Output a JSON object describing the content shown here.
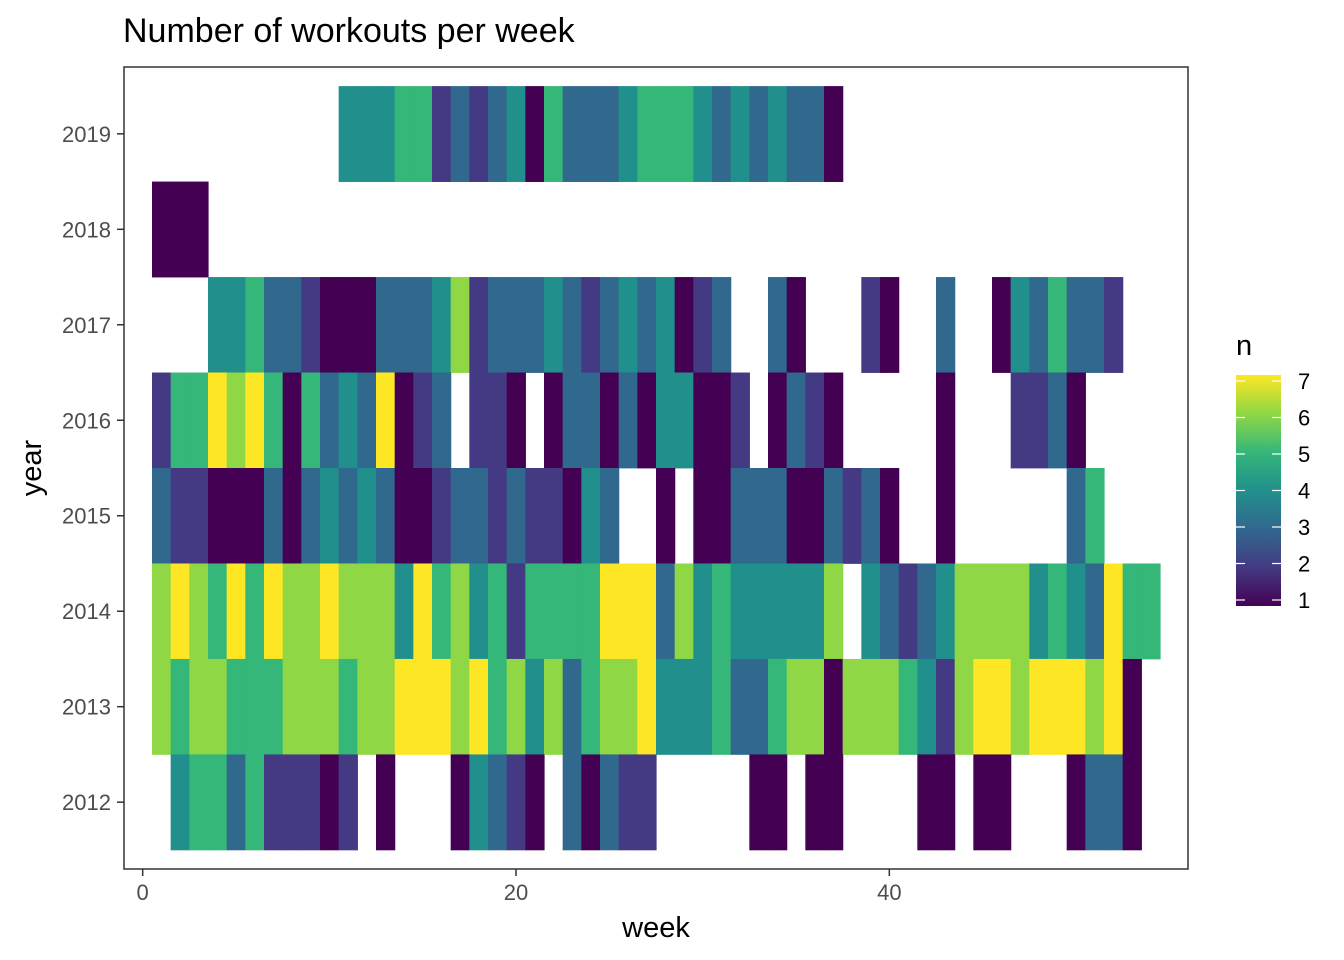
{
  "chart_data": {
    "type": "heatmap",
    "title": "Number of workouts per week",
    "xlabel": "week",
    "ylabel": "year",
    "xlim": [
      -1,
      56
    ],
    "ylim": [
      2011.3,
      2019.7
    ],
    "x_ticks": [
      0,
      20,
      40
    ],
    "y_ticks": [
      2012,
      2013,
      2014,
      2015,
      2016,
      2017,
      2018,
      2019
    ],
    "legend": {
      "title": "n",
      "min": 1,
      "max": 7,
      "ticks": [
        1,
        2,
        3,
        4,
        5,
        6,
        7
      ],
      "placement": "right",
      "palette": "viridis"
    },
    "colorscale": [
      "#440154",
      "#443A83",
      "#31688E",
      "#21908C",
      "#35B779",
      "#8FD744",
      "#FDE725"
    ],
    "grid": false,
    "rows": [
      {
        "year": 2019,
        "cells": [
          [
            11,
            4
          ],
          [
            12,
            4
          ],
          [
            13,
            4
          ],
          [
            14,
            5
          ],
          [
            15,
            5
          ],
          [
            16,
            2
          ],
          [
            17,
            3
          ],
          [
            18,
            2
          ],
          [
            19,
            3
          ],
          [
            20,
            4
          ],
          [
            21,
            1
          ],
          [
            22,
            5
          ],
          [
            23,
            3
          ],
          [
            24,
            3
          ],
          [
            25,
            3
          ],
          [
            26,
            4
          ],
          [
            27,
            5
          ],
          [
            28,
            5
          ],
          [
            29,
            5
          ],
          [
            30,
            4
          ],
          [
            31,
            3
          ],
          [
            32,
            4
          ],
          [
            33,
            3
          ],
          [
            34,
            4
          ],
          [
            35,
            3
          ],
          [
            36,
            3
          ],
          [
            37,
            1
          ]
        ]
      },
      {
        "year": 2018,
        "cells": [
          [
            1,
            1
          ],
          [
            2,
            1
          ],
          [
            3,
            1
          ]
        ]
      },
      {
        "year": 2017,
        "cells": [
          [
            4,
            4
          ],
          [
            5,
            4
          ],
          [
            6,
            5
          ],
          [
            7,
            3
          ],
          [
            8,
            3
          ],
          [
            9,
            2
          ],
          [
            10,
            1
          ],
          [
            11,
            1
          ],
          [
            12,
            1
          ],
          [
            13,
            3
          ],
          [
            14,
            3
          ],
          [
            15,
            3
          ],
          [
            16,
            4
          ],
          [
            17,
            6
          ],
          [
            18,
            2
          ],
          [
            19,
            3
          ],
          [
            20,
            3
          ],
          [
            21,
            3
          ],
          [
            22,
            4
          ],
          [
            23,
            3
          ],
          [
            24,
            2
          ],
          [
            25,
            3
          ],
          [
            26,
            4
          ],
          [
            27,
            3
          ],
          [
            28,
            4
          ],
          [
            29,
            1
          ],
          [
            30,
            2
          ],
          [
            31,
            3
          ],
          [
            34,
            3
          ],
          [
            35,
            1
          ],
          [
            39,
            2
          ],
          [
            40,
            1
          ],
          [
            43,
            3
          ],
          [
            46,
            1
          ],
          [
            47,
            4
          ],
          [
            48,
            3
          ],
          [
            49,
            5
          ],
          [
            50,
            3
          ],
          [
            51,
            3
          ],
          [
            52,
            2
          ]
        ]
      },
      {
        "year": 2016,
        "cells": [
          [
            1,
            2
          ],
          [
            2,
            5
          ],
          [
            3,
            5
          ],
          [
            4,
            7
          ],
          [
            5,
            6
          ],
          [
            6,
            7
          ],
          [
            7,
            5
          ],
          [
            8,
            1
          ],
          [
            9,
            5
          ],
          [
            10,
            3
          ],
          [
            11,
            4
          ],
          [
            12,
            3
          ],
          [
            13,
            7
          ],
          [
            14,
            1
          ],
          [
            15,
            2
          ],
          [
            16,
            3
          ],
          [
            18,
            2
          ],
          [
            19,
            2
          ],
          [
            20,
            1
          ],
          [
            22,
            1
          ],
          [
            23,
            3
          ],
          [
            24,
            3
          ],
          [
            25,
            1
          ],
          [
            26,
            3
          ],
          [
            27,
            1
          ],
          [
            28,
            4
          ],
          [
            29,
            4
          ],
          [
            30,
            1
          ],
          [
            31,
            1
          ],
          [
            32,
            2
          ],
          [
            34,
            1
          ],
          [
            35,
            3
          ],
          [
            36,
            2
          ],
          [
            37,
            1
          ],
          [
            43,
            1
          ],
          [
            47,
            2
          ],
          [
            48,
            2
          ],
          [
            49,
            3
          ],
          [
            50,
            1
          ]
        ]
      },
      {
        "year": 2015,
        "cells": [
          [
            1,
            3
          ],
          [
            2,
            2
          ],
          [
            3,
            2
          ],
          [
            4,
            1
          ],
          [
            5,
            1
          ],
          [
            6,
            1
          ],
          [
            7,
            3
          ],
          [
            8,
            1
          ],
          [
            9,
            3
          ],
          [
            10,
            4
          ],
          [
            11,
            3
          ],
          [
            12,
            4
          ],
          [
            13,
            3
          ],
          [
            14,
            1
          ],
          [
            15,
            1
          ],
          [
            16,
            2
          ],
          [
            17,
            3
          ],
          [
            18,
            3
          ],
          [
            19,
            2
          ],
          [
            20,
            3
          ],
          [
            21,
            2
          ],
          [
            22,
            2
          ],
          [
            23,
            1
          ],
          [
            24,
            4
          ],
          [
            25,
            3
          ],
          [
            28,
            1
          ],
          [
            30,
            1
          ],
          [
            31,
            1
          ],
          [
            32,
            3
          ],
          [
            33,
            3
          ],
          [
            34,
            3
          ],
          [
            35,
            1
          ],
          [
            36,
            1
          ],
          [
            37,
            3
          ],
          [
            38,
            2
          ],
          [
            39,
            3
          ],
          [
            40,
            1
          ],
          [
            43,
            1
          ],
          [
            50,
            3
          ],
          [
            51,
            5
          ]
        ]
      },
      {
        "year": 2014,
        "cells": [
          [
            1,
            6
          ],
          [
            2,
            7
          ],
          [
            3,
            6
          ],
          [
            4,
            5
          ],
          [
            5,
            7
          ],
          [
            6,
            5
          ],
          [
            7,
            7
          ],
          [
            8,
            6
          ],
          [
            9,
            6
          ],
          [
            10,
            7
          ],
          [
            11,
            6
          ],
          [
            12,
            6
          ],
          [
            13,
            6
          ],
          [
            14,
            4
          ],
          [
            15,
            7
          ],
          [
            16,
            5
          ],
          [
            17,
            6
          ],
          [
            18,
            4
          ],
          [
            19,
            5
          ],
          [
            20,
            2
          ],
          [
            21,
            5
          ],
          [
            22,
            5
          ],
          [
            23,
            5
          ],
          [
            24,
            5
          ],
          [
            25,
            7
          ],
          [
            26,
            7
          ],
          [
            27,
            7
          ],
          [
            28,
            3
          ],
          [
            29,
            6
          ],
          [
            30,
            4
          ],
          [
            31,
            5
          ],
          [
            32,
            4
          ],
          [
            33,
            4
          ],
          [
            34,
            4
          ],
          [
            35,
            4
          ],
          [
            36,
            4
          ],
          [
            37,
            6
          ],
          [
            39,
            4
          ],
          [
            40,
            3
          ],
          [
            41,
            2
          ],
          [
            42,
            3
          ],
          [
            43,
            4
          ],
          [
            44,
            6
          ],
          [
            45,
            6
          ],
          [
            46,
            6
          ],
          [
            47,
            6
          ],
          [
            48,
            4
          ],
          [
            49,
            5
          ],
          [
            50,
            4
          ],
          [
            51,
            3
          ],
          [
            52,
            7
          ],
          [
            53,
            5
          ],
          [
            54,
            5
          ]
        ]
      },
      {
        "year": 2013,
        "cells": [
          [
            1,
            6
          ],
          [
            2,
            5
          ],
          [
            3,
            6
          ],
          [
            4,
            6
          ],
          [
            5,
            5
          ],
          [
            6,
            5
          ],
          [
            7,
            5
          ],
          [
            8,
            6
          ],
          [
            9,
            6
          ],
          [
            10,
            6
          ],
          [
            11,
            5
          ],
          [
            12,
            6
          ],
          [
            13,
            6
          ],
          [
            14,
            7
          ],
          [
            15,
            7
          ],
          [
            16,
            7
          ],
          [
            17,
            6
          ],
          [
            18,
            7
          ],
          [
            19,
            5
          ],
          [
            20,
            6
          ],
          [
            21,
            4
          ],
          [
            22,
            6
          ],
          [
            23,
            3
          ],
          [
            24,
            5
          ],
          [
            25,
            6
          ],
          [
            26,
            6
          ],
          [
            27,
            7
          ],
          [
            28,
            4
          ],
          [
            29,
            4
          ],
          [
            30,
            4
          ],
          [
            31,
            5
          ],
          [
            32,
            3
          ],
          [
            33,
            3
          ],
          [
            34,
            5
          ],
          [
            35,
            6
          ],
          [
            36,
            6
          ],
          [
            37,
            1
          ],
          [
            38,
            6
          ],
          [
            39,
            6
          ],
          [
            40,
            6
          ],
          [
            41,
            5
          ],
          [
            42,
            4
          ],
          [
            43,
            2
          ],
          [
            44,
            6
          ],
          [
            45,
            7
          ],
          [
            46,
            7
          ],
          [
            47,
            6
          ],
          [
            48,
            7
          ],
          [
            49,
            7
          ],
          [
            50,
            7
          ],
          [
            51,
            6
          ],
          [
            52,
            7
          ],
          [
            53,
            1
          ]
        ]
      },
      {
        "year": 2012,
        "cells": [
          [
            2,
            4
          ],
          [
            3,
            5
          ],
          [
            4,
            5
          ],
          [
            5,
            3
          ],
          [
            6,
            5
          ],
          [
            7,
            2
          ],
          [
            8,
            2
          ],
          [
            9,
            2
          ],
          [
            10,
            1
          ],
          [
            11,
            2
          ],
          [
            13,
            1
          ],
          [
            17,
            1
          ],
          [
            18,
            4
          ],
          [
            19,
            3
          ],
          [
            20,
            2
          ],
          [
            21,
            1
          ],
          [
            23,
            3
          ],
          [
            24,
            1
          ],
          [
            25,
            3
          ],
          [
            26,
            2
          ],
          [
            27,
            2
          ],
          [
            33,
            1
          ],
          [
            34,
            1
          ],
          [
            36,
            1
          ],
          [
            37,
            1
          ],
          [
            42,
            1
          ],
          [
            43,
            1
          ],
          [
            45,
            1
          ],
          [
            46,
            1
          ],
          [
            50,
            1
          ],
          [
            51,
            3
          ],
          [
            52,
            3
          ],
          [
            53,
            1
          ]
        ]
      }
    ]
  }
}
